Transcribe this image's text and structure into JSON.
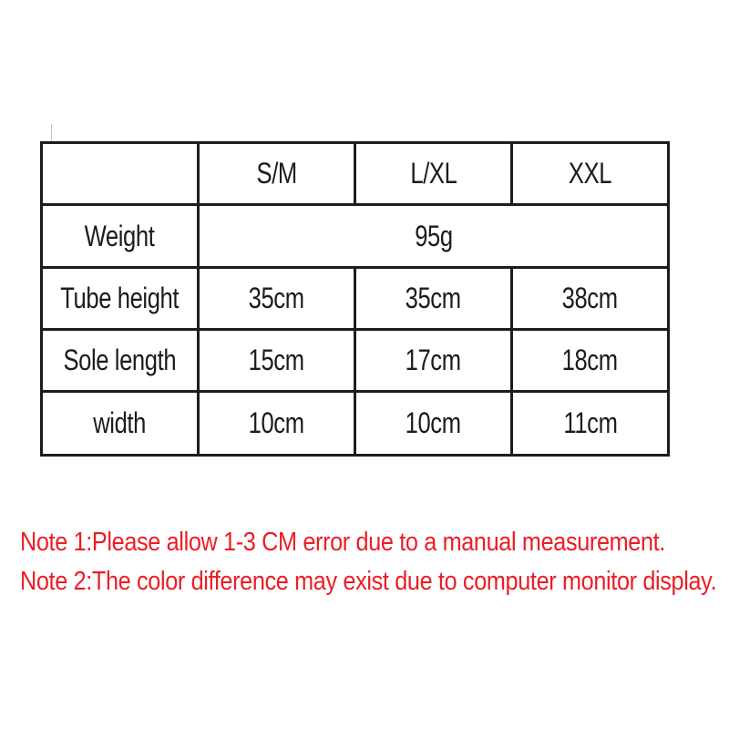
{
  "colors": {
    "background": "#ffffff",
    "border": "#1c1c1c",
    "table_text": "#1c1c1c",
    "note_red": "#ed1c24"
  },
  "table": {
    "columns": [
      "",
      "S/M",
      "L/XL",
      "XXL"
    ],
    "rows": [
      {
        "label": "Weight",
        "merged_value": "95g"
      },
      {
        "label": "Tube height",
        "values": [
          "35cm",
          "35cm",
          "38cm"
        ]
      },
      {
        "label": "Sole length",
        "values": [
          "15cm",
          "17cm",
          "18cm"
        ]
      },
      {
        "label": "width",
        "values": [
          "10cm",
          "10cm",
          "11cm"
        ]
      }
    ]
  },
  "notes": {
    "line1": "Note 1:Please allow 1-3 CM error due to a manual measurement.",
    "line2": "Note 2:The color difference may exist due to computer monitor display."
  }
}
